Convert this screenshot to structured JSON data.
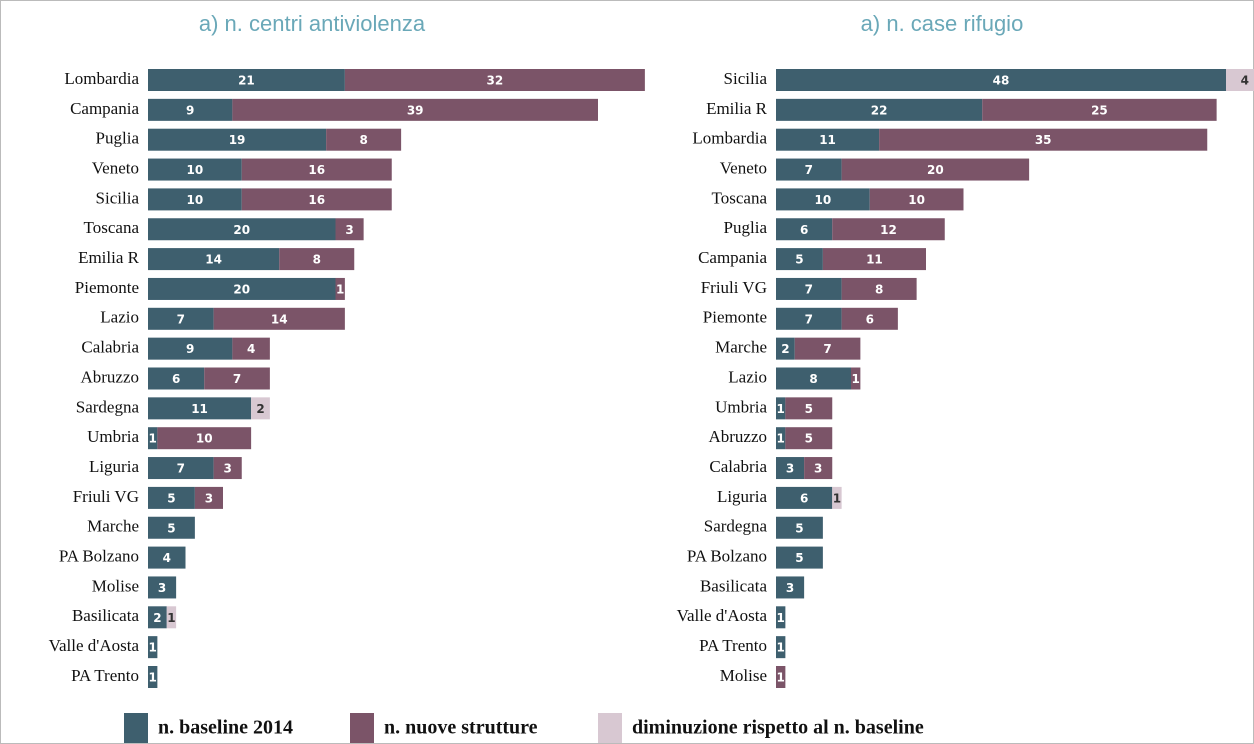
{
  "chart_data": [
    {
      "type": "stacked-barh",
      "title": "a) n. centri antiviolenza",
      "categories": [
        "Lombardia",
        "Campania",
        "Puglia",
        "Veneto",
        "Sicilia",
        "Toscana",
        "Emilia R",
        "Piemonte",
        "Lazio",
        "Calabria",
        "Abruzzo",
        "Sardegna",
        "Umbria",
        "Liguria",
        "Friuli VG",
        "Marche",
        "PA Bolzano",
        "Molise",
        "Basilicata",
        "Valle d'Aosta",
        "PA Trento"
      ],
      "series": [
        {
          "name": "n. baseline 2014",
          "color": "#3e5f6e",
          "values": [
            21,
            9,
            19,
            10,
            10,
            20,
            14,
            20,
            7,
            9,
            6,
            11,
            1,
            7,
            5,
            5,
            4,
            3,
            2,
            1,
            1
          ]
        },
        {
          "name": "n. nuove strutture",
          "color": "#7b5468",
          "values": [
            32,
            39,
            8,
            16,
            16,
            3,
            8,
            1,
            14,
            4,
            7,
            null,
            10,
            3,
            3,
            null,
            null,
            null,
            null,
            null,
            null
          ]
        },
        {
          "name": "diminuzione rispetto al n. baseline",
          "color": "#d8c8d2",
          "values": [
            null,
            null,
            null,
            null,
            null,
            null,
            null,
            null,
            null,
            null,
            null,
            2,
            null,
            null,
            null,
            null,
            null,
            null,
            1,
            null,
            null
          ]
        }
      ]
    },
    {
      "type": "stacked-barh",
      "title": "a) n. case rifugio",
      "categories": [
        "Sicilia",
        "Emilia R",
        "Lombardia",
        "Veneto",
        "Toscana",
        "Puglia",
        "Campania",
        "Friuli VG",
        "Piemonte",
        "Marche",
        "Lazio",
        "Umbria",
        "Abruzzo",
        "Calabria",
        "Liguria",
        "Sardegna",
        "PA Bolzano",
        "Basilicata",
        "Valle d'Aosta",
        "PA Trento",
        "Molise"
      ],
      "series": [
        {
          "name": "n. baseline 2014",
          "color": "#3e5f6e",
          "values": [
            48,
            22,
            11,
            7,
            10,
            6,
            5,
            7,
            7,
            2,
            8,
            1,
            1,
            3,
            6,
            5,
            5,
            3,
            1,
            1,
            null
          ]
        },
        {
          "name": "n. nuove strutture",
          "color": "#7b5468",
          "values": [
            null,
            25,
            35,
            20,
            10,
            12,
            11,
            8,
            6,
            7,
            1,
            5,
            5,
            3,
            null,
            null,
            null,
            null,
            null,
            null,
            1
          ]
        },
        {
          "name": "diminuzione rispetto al n. baseline",
          "color": "#d8c8d2",
          "values": [
            4,
            null,
            null,
            null,
            null,
            null,
            null,
            null,
            null,
            null,
            null,
            null,
            null,
            null,
            1,
            null,
            null,
            null,
            null,
            null,
            null
          ]
        }
      ]
    }
  ]
}
